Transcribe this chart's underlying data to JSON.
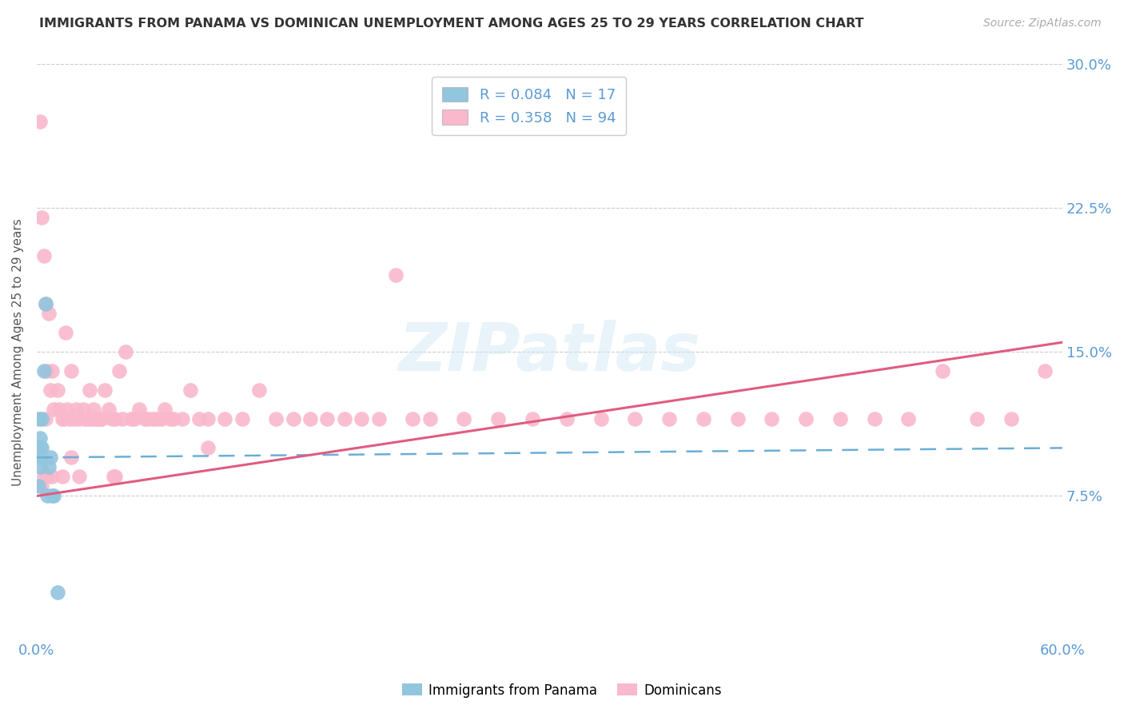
{
  "title": "IMMIGRANTS FROM PANAMA VS DOMINICAN UNEMPLOYMENT AMONG AGES 25 TO 29 YEARS CORRELATION CHART",
  "source": "Source: ZipAtlas.com",
  "ylabel": "Unemployment Among Ages 25 to 29 years",
  "x_min": 0.0,
  "x_max": 0.6,
  "y_min": 0.0,
  "y_max": 0.3,
  "x_ticks": [
    0.0,
    0.1,
    0.2,
    0.3,
    0.4,
    0.5,
    0.6
  ],
  "y_ticks": [
    0.0,
    0.075,
    0.15,
    0.225,
    0.3
  ],
  "y_tick_labels": [
    "",
    "7.5%",
    "15.0%",
    "22.5%",
    "30.0%"
  ],
  "color_panama": "#92c5de",
  "color_dominican": "#f9b8cc",
  "color_trendline_panama": "#6aaed6",
  "color_trendline_dominican": "#e05c80",
  "color_axis_labels": "#5b9bd5",
  "watermark": "ZIPatlas",
  "panama_scatter_x": [
    0.001,
    0.001,
    0.001,
    0.002,
    0.002,
    0.002,
    0.002,
    0.003,
    0.003,
    0.004,
    0.005,
    0.006,
    0.007,
    0.008,
    0.009,
    0.01,
    0.012
  ],
  "panama_scatter_y": [
    0.08,
    0.1,
    0.115,
    0.09,
    0.095,
    0.1,
    0.105,
    0.1,
    0.115,
    0.14,
    0.175,
    0.075,
    0.09,
    0.095,
    0.075,
    0.075,
    0.025
  ],
  "panama_trend_x": [
    0.0,
    0.6
  ],
  "panama_trend_y": [
    0.095,
    0.1
  ],
  "dominican_trend_x": [
    0.0,
    0.6
  ],
  "dominican_trend_y": [
    0.075,
    0.155
  ],
  "dominican_scatter_x": [
    0.002,
    0.003,
    0.004,
    0.005,
    0.005,
    0.006,
    0.007,
    0.008,
    0.009,
    0.01,
    0.012,
    0.013,
    0.015,
    0.016,
    0.017,
    0.018,
    0.019,
    0.02,
    0.022,
    0.023,
    0.025,
    0.027,
    0.028,
    0.03,
    0.031,
    0.032,
    0.033,
    0.034,
    0.035,
    0.037,
    0.038,
    0.04,
    0.042,
    0.044,
    0.046,
    0.048,
    0.05,
    0.052,
    0.055,
    0.057,
    0.06,
    0.063,
    0.065,
    0.068,
    0.07,
    0.073,
    0.075,
    0.078,
    0.08,
    0.085,
    0.09,
    0.095,
    0.1,
    0.11,
    0.12,
    0.13,
    0.14,
    0.15,
    0.16,
    0.17,
    0.18,
    0.19,
    0.2,
    0.21,
    0.22,
    0.23,
    0.25,
    0.27,
    0.29,
    0.31,
    0.33,
    0.35,
    0.37,
    0.39,
    0.41,
    0.43,
    0.45,
    0.47,
    0.49,
    0.51,
    0.53,
    0.55,
    0.57,
    0.59,
    0.003,
    0.004,
    0.006,
    0.009,
    0.015,
    0.02,
    0.025,
    0.045,
    0.046,
    0.1
  ],
  "dominican_scatter_y": [
    0.27,
    0.22,
    0.2,
    0.175,
    0.115,
    0.14,
    0.17,
    0.13,
    0.14,
    0.12,
    0.13,
    0.12,
    0.115,
    0.115,
    0.16,
    0.12,
    0.115,
    0.14,
    0.115,
    0.12,
    0.115,
    0.12,
    0.115,
    0.115,
    0.13,
    0.115,
    0.12,
    0.115,
    0.115,
    0.115,
    0.115,
    0.13,
    0.12,
    0.115,
    0.115,
    0.14,
    0.115,
    0.15,
    0.115,
    0.115,
    0.12,
    0.115,
    0.115,
    0.115,
    0.115,
    0.115,
    0.12,
    0.115,
    0.115,
    0.115,
    0.13,
    0.115,
    0.115,
    0.115,
    0.115,
    0.13,
    0.115,
    0.115,
    0.115,
    0.115,
    0.115,
    0.115,
    0.115,
    0.19,
    0.115,
    0.115,
    0.115,
    0.115,
    0.115,
    0.115,
    0.115,
    0.115,
    0.115,
    0.115,
    0.115,
    0.115,
    0.115,
    0.115,
    0.115,
    0.115,
    0.14,
    0.115,
    0.115,
    0.14,
    0.08,
    0.085,
    0.085,
    0.085,
    0.085,
    0.095,
    0.085,
    0.085,
    0.085,
    0.1
  ]
}
